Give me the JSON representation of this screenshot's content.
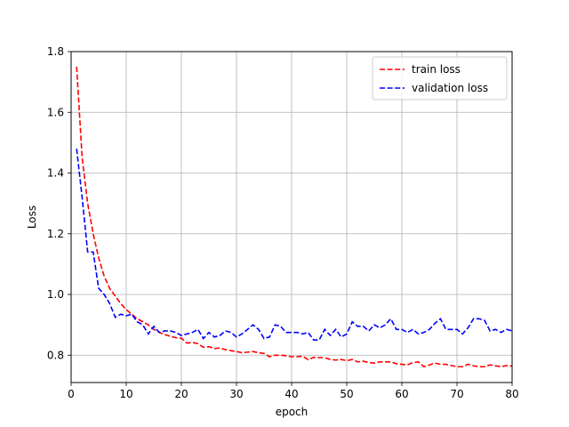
{
  "chart_data": {
    "type": "line",
    "xlabel": "epoch",
    "ylabel": "Loss",
    "xlim": [
      0,
      80
    ],
    "ylim": [
      0.71,
      1.8
    ],
    "xticks": [
      0,
      10,
      20,
      30,
      40,
      50,
      60,
      70,
      80
    ],
    "yticks": [
      0.8,
      1.0,
      1.2,
      1.4,
      1.6,
      1.8
    ],
    "grid": true,
    "legend_position": "top-right",
    "x": [
      1,
      2,
      3,
      4,
      5,
      6,
      7,
      8,
      9,
      10,
      11,
      12,
      13,
      14,
      15,
      16,
      17,
      18,
      19,
      20,
      21,
      22,
      23,
      24,
      25,
      26,
      27,
      28,
      29,
      30,
      31,
      32,
      33,
      34,
      35,
      36,
      37,
      38,
      39,
      40,
      41,
      42,
      43,
      44,
      45,
      46,
      47,
      48,
      49,
      50,
      51,
      52,
      53,
      54,
      55,
      56,
      57,
      58,
      59,
      60,
      61,
      62,
      63,
      64,
      65,
      66,
      67,
      68,
      69,
      70,
      71,
      72,
      73,
      74,
      75,
      76,
      77,
      78,
      79,
      80
    ],
    "series": [
      {
        "name": "train loss",
        "color": "#ff0000",
        "dash": "dashed",
        "values": [
          1.75,
          1.45,
          1.3,
          1.2,
          1.12,
          1.06,
          1.02,
          0.995,
          0.97,
          0.95,
          0.935,
          0.92,
          0.91,
          0.9,
          0.885,
          0.875,
          0.868,
          0.862,
          0.858,
          0.856,
          0.84,
          0.842,
          0.838,
          0.826,
          0.828,
          0.822,
          0.824,
          0.818,
          0.815,
          0.812,
          0.808,
          0.81,
          0.812,
          0.808,
          0.806,
          0.795,
          0.8,
          0.8,
          0.798,
          0.795,
          0.795,
          0.797,
          0.785,
          0.793,
          0.792,
          0.792,
          0.786,
          0.784,
          0.786,
          0.782,
          0.786,
          0.778,
          0.78,
          0.776,
          0.774,
          0.778,
          0.778,
          0.778,
          0.772,
          0.77,
          0.768,
          0.776,
          0.778,
          0.762,
          0.768,
          0.774,
          0.77,
          0.77,
          0.766,
          0.762,
          0.762,
          0.77,
          0.765,
          0.762,
          0.762,
          0.768,
          0.765,
          0.762,
          0.766,
          0.764
        ]
      },
      {
        "name": "validation loss",
        "color": "#0000ff",
        "dash": "dashed",
        "values": [
          1.48,
          1.32,
          1.14,
          1.14,
          1.02,
          1.0,
          0.97,
          0.925,
          0.935,
          0.93,
          0.935,
          0.91,
          0.9,
          0.87,
          0.895,
          0.875,
          0.88,
          0.88,
          0.875,
          0.865,
          0.87,
          0.875,
          0.885,
          0.855,
          0.875,
          0.86,
          0.865,
          0.88,
          0.875,
          0.86,
          0.87,
          0.885,
          0.9,
          0.885,
          0.855,
          0.86,
          0.9,
          0.895,
          0.875,
          0.875,
          0.875,
          0.87,
          0.875,
          0.85,
          0.85,
          0.885,
          0.865,
          0.885,
          0.86,
          0.87,
          0.91,
          0.895,
          0.895,
          0.88,
          0.9,
          0.89,
          0.9,
          0.92,
          0.885,
          0.885,
          0.875,
          0.885,
          0.87,
          0.875,
          0.885,
          0.905,
          0.92,
          0.885,
          0.885,
          0.885,
          0.87,
          0.89,
          0.92,
          0.92,
          0.915,
          0.88,
          0.885,
          0.875,
          0.885,
          0.88
        ]
      }
    ]
  }
}
